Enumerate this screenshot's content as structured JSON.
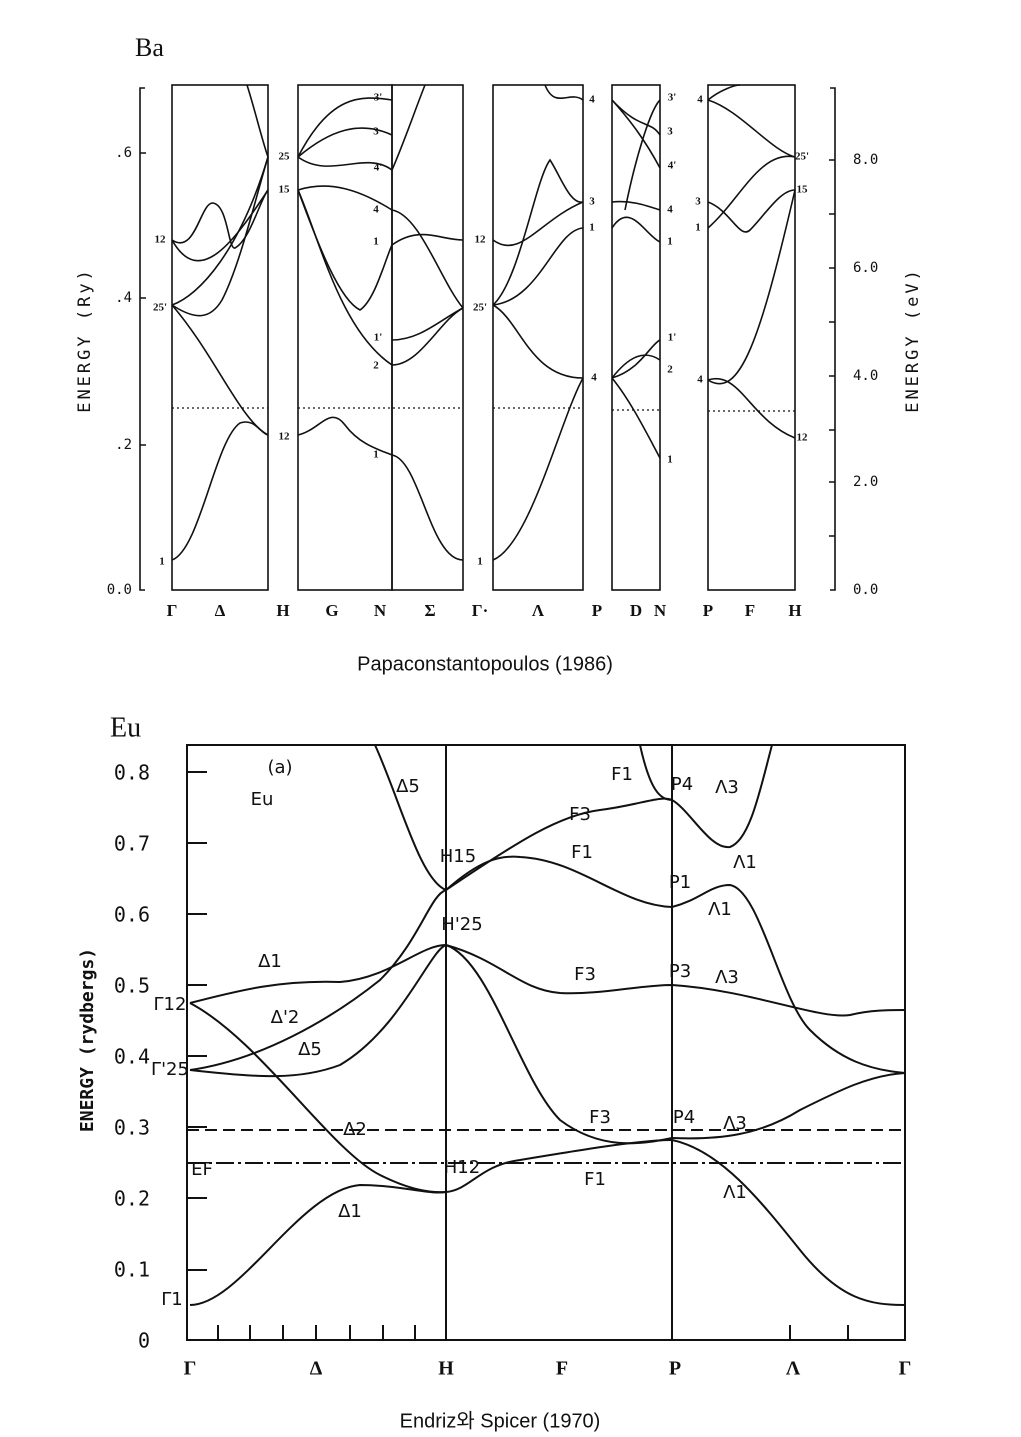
{
  "ba": {
    "title": "Ba",
    "y_label_left": "ENERGY (Ry)",
    "y_label_right": "ENERGY (eV)",
    "left_ticks": [
      "0.0",
      ".2",
      ".4",
      ".6"
    ],
    "right_ticks": [
      "0.0",
      "2.0",
      "4.0",
      "6.0",
      "8.0"
    ],
    "k_points": [
      "Γ",
      "Δ",
      "H",
      "G",
      "N",
      "Σ",
      "Γ·",
      "Λ",
      "P",
      "D",
      "N",
      "P",
      "F",
      "H"
    ],
    "band_labels": [
      "12",
      "25'",
      "1",
      "25",
      "15",
      "12",
      "3'",
      "3",
      "4'",
      "4",
      "1",
      "1'",
      "2",
      "1",
      "12",
      "25'",
      "1",
      "4",
      "3",
      "1",
      "4",
      "3'",
      "3",
      "4'",
      "4",
      "1",
      "1'",
      "2",
      "1",
      "4",
      "3",
      "1",
      "4",
      "25'",
      "15",
      "12"
    ],
    "caption": "Papaconstantopoulos (1986)"
  },
  "eu": {
    "title": "Eu",
    "y_label": "ENERGY (rydbergs)",
    "y_ticks": [
      "0",
      "0.1",
      "0.2",
      "0.3",
      "0.4",
      "0.5",
      "0.6",
      "0.7",
      "0.8"
    ],
    "k_points": [
      "Γ",
      "Δ",
      "H",
      "F",
      "P",
      "Λ",
      "Γ"
    ],
    "band_labels": [
      "(a)",
      "Eu",
      "Δ5",
      "F1",
      "P4",
      "Λ3",
      "F3",
      "H15",
      "F1",
      "Λ1",
      "P1",
      "Λ1",
      "H'25",
      "Δ1",
      "F3",
      "P3",
      "Λ3",
      "Γ12",
      "Δ'2",
      "Δ5",
      "Γ'25",
      "F3",
      "P4",
      "Λ3",
      "Δ2",
      "EF",
      "H12",
      "F1",
      "Λ1",
      "Δ1",
      "Γ1"
    ],
    "caption": "Endriz와 Spicer (1970)"
  }
}
